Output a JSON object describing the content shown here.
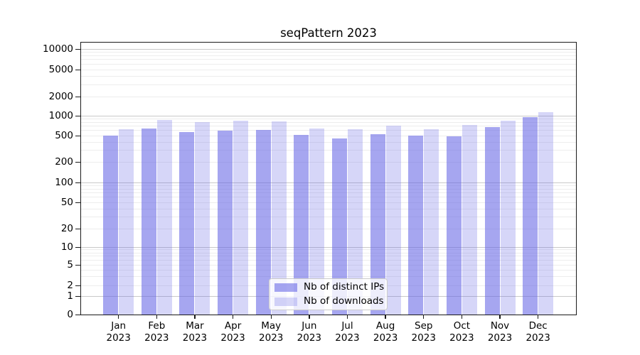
{
  "chart_data": {
    "type": "bar",
    "title": "seqPattern 2023",
    "categories": [
      "Jan",
      "Feb",
      "Mar",
      "Apr",
      "May",
      "Jun",
      "Jul",
      "Aug",
      "Sep",
      "Oct",
      "Nov",
      "Dec"
    ],
    "x_tick_second_line": "2023",
    "series": [
      {
        "name": "Nb of distinct IPs",
        "color": "rgba(102,102,230,0.58)",
        "values": [
          500,
          640,
          565,
          600,
          610,
          510,
          455,
          525,
          500,
          490,
          670,
          950
        ]
      },
      {
        "name": "Nb of downloads",
        "color": "rgba(102,102,230,0.27)",
        "values": [
          620,
          860,
          800,
          840,
          820,
          640,
          625,
          710,
          625,
          725,
          840,
          1130
        ]
      }
    ],
    "y_ticks": [
      0,
      1,
      2,
      5,
      10,
      20,
      50,
      100,
      200,
      500,
      1000,
      2000,
      5000,
      10000
    ],
    "y_scale": "log",
    "ylim": [
      0,
      10000
    ],
    "grid": true,
    "legend_position": "lower center",
    "colors": {
      "major_grid": "#c9c9c9",
      "minor_grid": "#ededed",
      "axis": "#1a1a1a"
    }
  }
}
